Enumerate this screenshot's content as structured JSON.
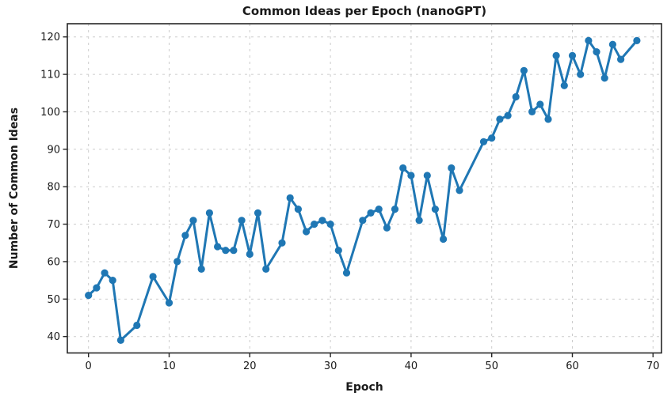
{
  "chart_data": {
    "type": "line",
    "title": "Common Ideas per Epoch (nanoGPT)",
    "xlabel": "Epoch",
    "ylabel": "Number of Common Ideas",
    "x": [
      0,
      1,
      2,
      3,
      4,
      6,
      8,
      10,
      11,
      12,
      13,
      14,
      15,
      16,
      17,
      18,
      19,
      20,
      21,
      22,
      24,
      25,
      26,
      27,
      28,
      29,
      30,
      31,
      32,
      34,
      35,
      36,
      37,
      38,
      39,
      40,
      41,
      42,
      43,
      44,
      45,
      46,
      49,
      50,
      51,
      52,
      53,
      54,
      55,
      56,
      57,
      58,
      59,
      60,
      61,
      62,
      63,
      64,
      65,
      66,
      68
    ],
    "y": [
      51,
      53,
      57,
      55,
      39,
      43,
      56,
      49,
      60,
      67,
      71,
      58,
      73,
      64,
      63,
      63,
      71,
      62,
      73,
      58,
      65,
      77,
      74,
      68,
      70,
      71,
      70,
      63,
      57,
      71,
      73,
      74,
      69,
      74,
      85,
      83,
      71,
      83,
      74,
      66,
      85,
      79,
      92,
      93,
      98,
      99,
      104,
      111,
      100,
      102,
      98,
      115,
      107,
      115,
      110,
      119,
      116,
      109,
      118,
      114,
      119
    ],
    "x_ticks": [
      0,
      10,
      20,
      30,
      40,
      50,
      60,
      70
    ],
    "y_ticks": [
      40,
      50,
      60,
      70,
      80,
      90,
      100,
      110,
      120
    ],
    "xlim": [
      -2.6,
      71.1
    ],
    "ylim": [
      35.6,
      123.5
    ],
    "grid": true,
    "legend": "none",
    "line_color": "#1f77b4",
    "marker": "circle",
    "grid_color": "#cccccc",
    "spine_color": "#262626",
    "text_color": "#1a1a1a"
  }
}
